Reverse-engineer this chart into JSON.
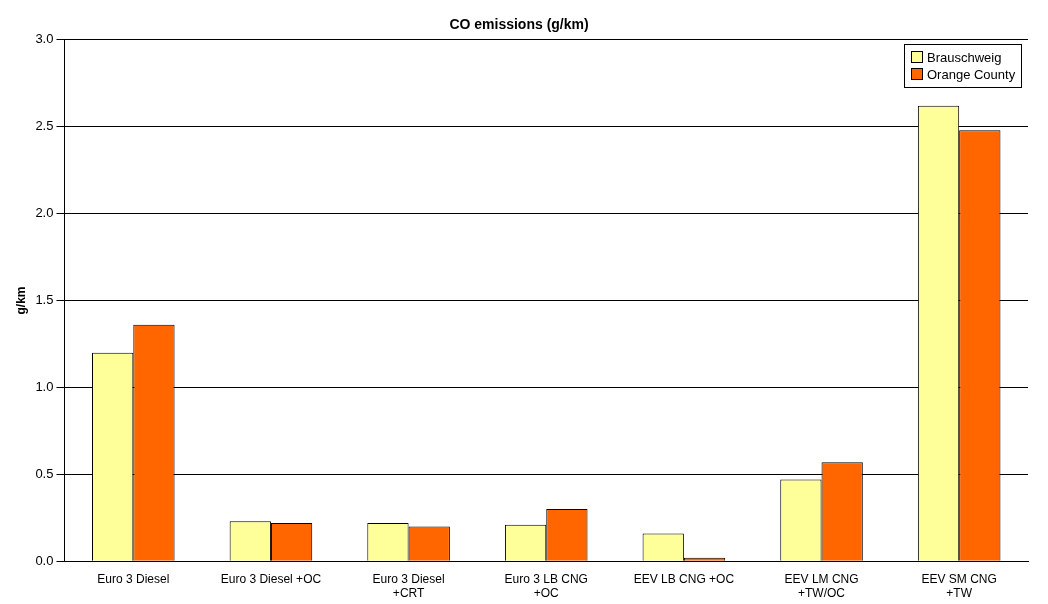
{
  "chart_data": {
    "type": "bar",
    "title": "CO emissions (g/km)",
    "ylabel": "g/km",
    "categories": [
      "Euro 3 Diesel",
      "Euro 3 Diesel +OC",
      "Euro 3 Diesel\n+CRT",
      "Euro 3 LB CNG\n+OC",
      "EEV LB CNG +OC",
      "EEV LM CNG\n+TW/OC",
      "EEV SM CNG\n+TW"
    ],
    "series": [
      {
        "name": "Brauschweig",
        "color": "#ffff99",
        "values": [
          1.2,
          0.23,
          0.22,
          0.21,
          0.16,
          0.47,
          2.62
        ]
      },
      {
        "name": "Orange County",
        "color": "#ff6600",
        "values": [
          1.36,
          0.22,
          0.2,
          0.3,
          0.02,
          0.57,
          2.48
        ]
      }
    ],
    "ylim": [
      0,
      3
    ],
    "yticks": [
      {
        "value": 0,
        "label": "0.0"
      },
      {
        "value": 0.5,
        "label": "0.5"
      },
      {
        "value": 1,
        "label": "1.0"
      },
      {
        "value": 1.5,
        "label": "1.5"
      },
      {
        "value": 2,
        "label": "2.0"
      },
      {
        "value": 2.5,
        "label": "2.5"
      },
      {
        "value": 3,
        "label": "3.0"
      }
    ],
    "grid": "y",
    "legend": "top right"
  }
}
